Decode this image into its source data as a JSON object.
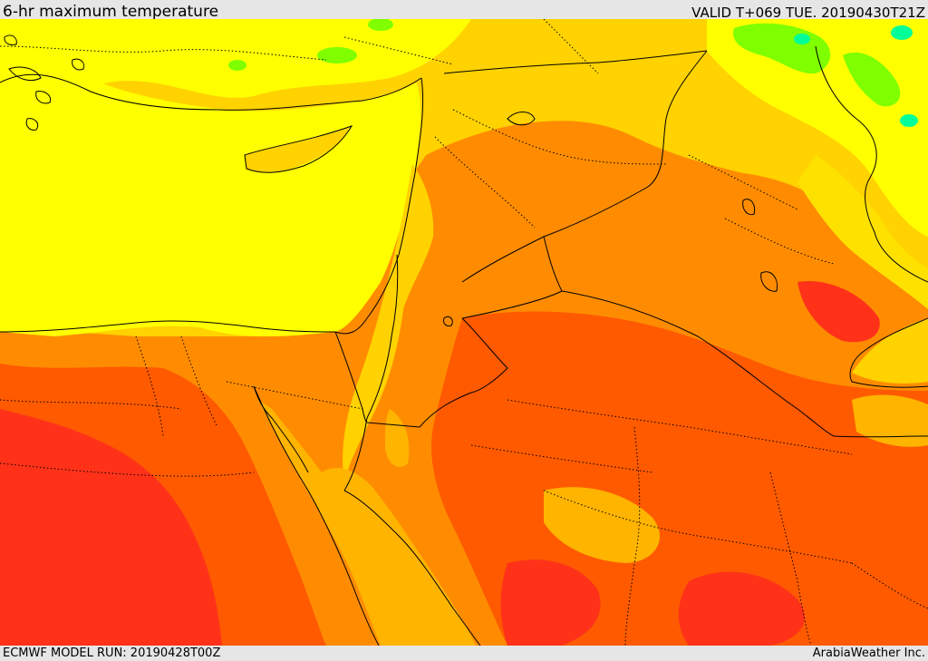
{
  "header": {
    "title": "6-hr maximum temperature",
    "valid": "VALID T+069 TUE. 20190430T21Z"
  },
  "footer": {
    "model_run": "ECMWF MODEL RUN: 20190428T00Z",
    "credit": "ArabiaWeather Inc."
  },
  "palette": {
    "sea_yellow": "#ffff00",
    "pale_yellow": "#ffe100",
    "gold": "#ffd200",
    "amber": "#ffb400",
    "orange": "#ff8c00",
    "orange_red": "#ff5a00",
    "red": "#ff3219",
    "green": "#7fff00",
    "cyan": "#00ff99"
  }
}
